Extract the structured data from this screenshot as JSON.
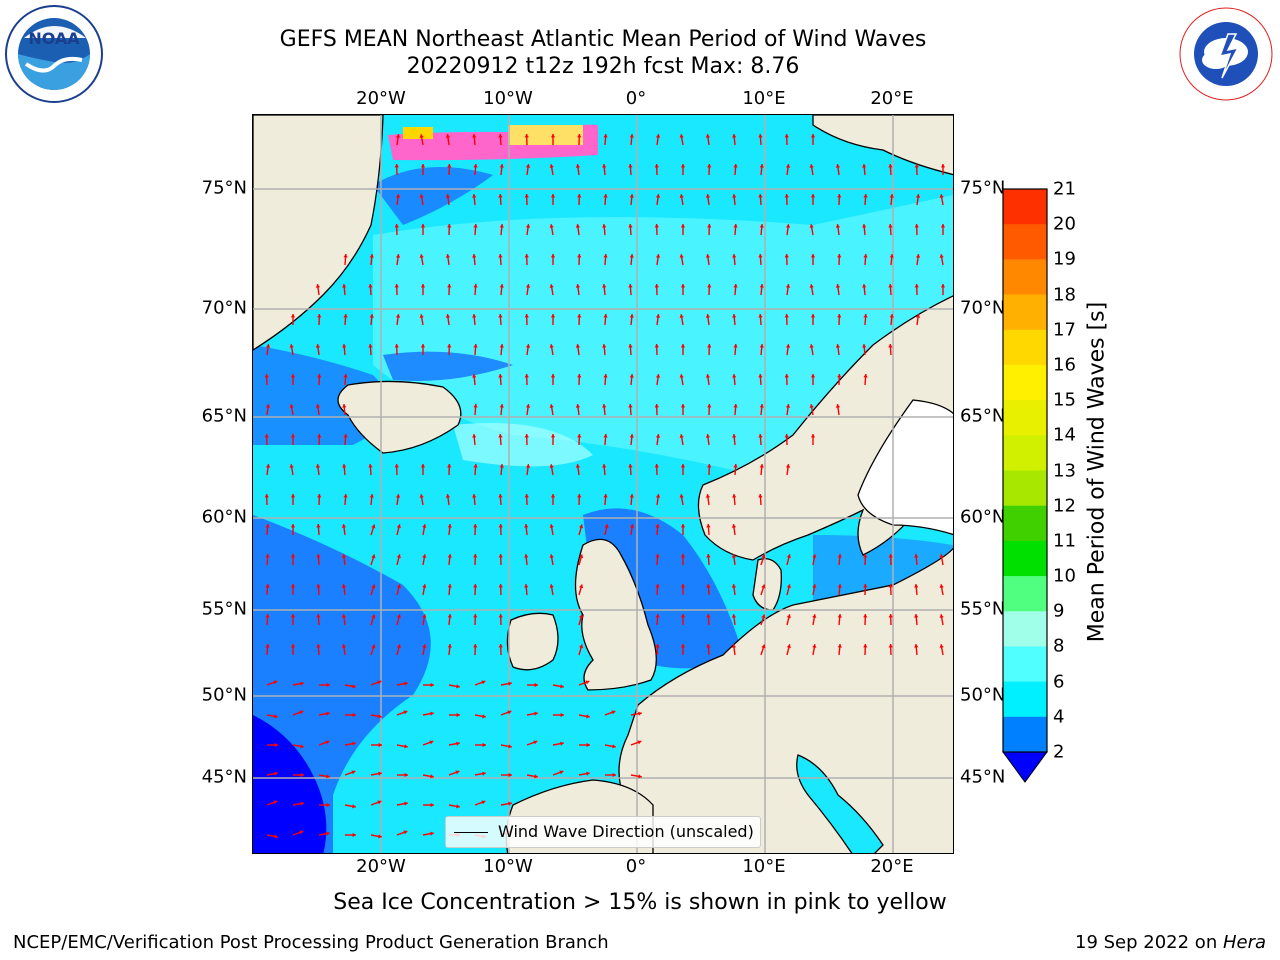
{
  "header": {
    "title_line1": "GEFS MEAN Northeast Atlantic Mean Period of Wind Waves",
    "title_line2": "20220912 t12z 192h fcst   Max: 8.76"
  },
  "logos": {
    "left": {
      "name": "noaa-logo",
      "text": "NOAA",
      "ring_text": "NATIONAL OCEANIC AND ATMOSPHERIC ADMINISTRATION · U.S. DEPARTMENT OF COMMERCE"
    },
    "right": {
      "name": "nws-logo",
      "ring_text": "NATIONAL WEATHER SERVICE"
    }
  },
  "map": {
    "lon_ticks": [
      "20°W",
      "10°W",
      "0°",
      "10°E",
      "20°E"
    ],
    "lat_ticks": [
      "75°N",
      "70°N",
      "65°N",
      "60°N",
      "55°N",
      "50°N",
      "45°N"
    ],
    "grid": true,
    "arrow_color": "#ff0000",
    "land_color": "#efecdc",
    "legend_entry": "Wind Wave Direction (unscaled)"
  },
  "colorbar": {
    "label": "Mean Period of Wind Waves [s]",
    "ticks": [
      "21",
      "20",
      "19",
      "18",
      "17",
      "16",
      "15",
      "14",
      "13",
      "12",
      "11",
      "10",
      "9",
      "8",
      "6",
      "4",
      "2"
    ],
    "colors": [
      "#ff0000",
      "#ff3000",
      "#ff5a00",
      "#ff8800",
      "#ffb000",
      "#ffd800",
      "#fff000",
      "#e8f000",
      "#d0f000",
      "#a8e800",
      "#40d000",
      "#00e000",
      "#50ff80",
      "#a0ffe8",
      "#50ffff",
      "#00f0ff",
      "#0080ff"
    ],
    "extend_color": "#0000ff"
  },
  "chart_data": {
    "type": "heatmap",
    "title": "GEFS MEAN Northeast Atlantic Mean Period of Wind Waves",
    "subtitle": "20220912 t12z 192h fcst   Max: 8.76",
    "variable": "Mean Period of Wind Waves [s]",
    "max_value": 8.76,
    "x_range": [
      "30°W",
      "25°E"
    ],
    "y_range": [
      "41°N",
      "78°N"
    ],
    "color_levels": [
      2,
      4,
      6,
      8,
      9,
      10,
      11,
      12,
      13,
      14,
      15,
      16,
      17,
      18,
      19,
      20,
      21
    ],
    "overlay": "Wind Wave Direction (unscaled)"
  },
  "notes": {
    "sea_ice": "Sea Ice Concentration > 15% is shown in pink to yellow",
    "footer_left": "NCEP/EMC/Verification Post Processing Product Generation Branch",
    "footer_date": "19 Sep 2022 on ",
    "footer_machine": "Hera"
  }
}
